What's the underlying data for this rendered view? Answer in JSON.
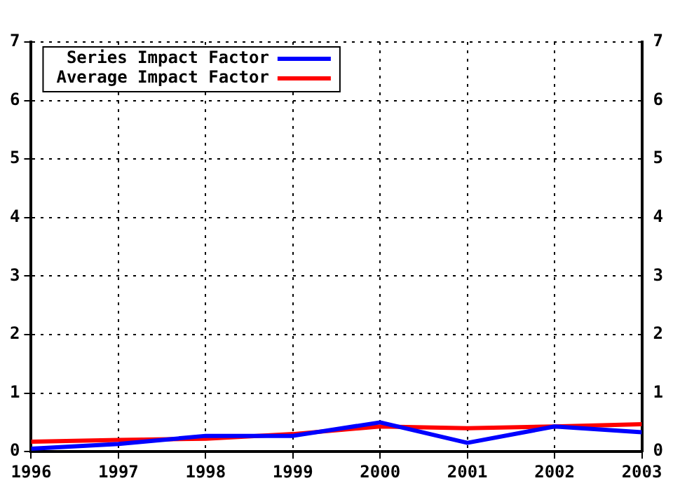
{
  "chart_data": {
    "type": "line",
    "x": [
      1996,
      1997,
      1998,
      1999,
      2000,
      2001,
      2002,
      2003
    ],
    "series": [
      {
        "name": "Series Impact Factor",
        "color": "#0000ff",
        "values": [
          0.05,
          0.13,
          0.27,
          0.27,
          0.5,
          0.15,
          0.43,
          0.33
        ]
      },
      {
        "name": "Average Impact Factor",
        "color": "#ff0000",
        "values": [
          0.17,
          0.2,
          0.22,
          0.3,
          0.43,
          0.4,
          0.43,
          0.47
        ]
      }
    ],
    "xlim": [
      1996,
      2003
    ],
    "xticks": [
      1996,
      1997,
      1998,
      1999,
      2000,
      2001,
      2002,
      2003
    ],
    "ylim": [
      0,
      7
    ],
    "yticks": [
      0,
      1,
      2,
      3,
      4,
      5,
      6,
      7
    ],
    "y2lim": [
      0,
      7
    ],
    "y2ticks": [
      0,
      1,
      2,
      3,
      4,
      5,
      6,
      7
    ],
    "grid": true,
    "legend": "top left",
    "marker": "none",
    "line_style": "solid"
  }
}
